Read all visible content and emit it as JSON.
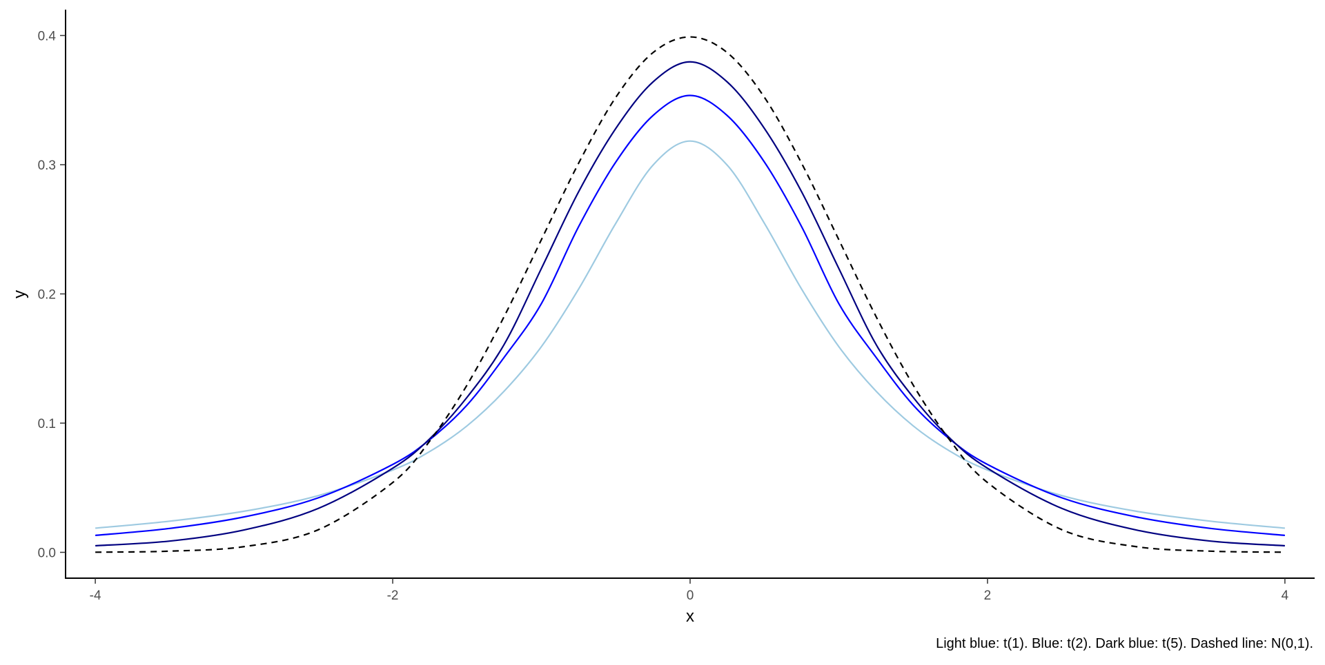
{
  "chart_data": {
    "type": "line",
    "title": "",
    "xlabel": "x",
    "ylabel": "y",
    "caption": "Light blue: t(1). Blue: t(2). Dark blue: t(5). Dashed line: N(0,1).",
    "xlim": [
      -4.2,
      4.2
    ],
    "ylim": [
      -0.02,
      0.42
    ],
    "x_ticks": [
      -4,
      -2,
      0,
      2,
      4
    ],
    "x_tick_labels": [
      "-4",
      "-2",
      "0",
      "2",
      "4"
    ],
    "y_ticks": [
      0.0,
      0.1,
      0.2,
      0.3,
      0.4
    ],
    "y_tick_labels": [
      "0.0",
      "0.1",
      "0.2",
      "0.3",
      "0.4"
    ],
    "grid": false,
    "legend": "none",
    "x": [
      -4,
      -3.5,
      -3,
      -2.5,
      -2,
      -1.75,
      -1.5,
      -1.25,
      -1,
      -0.75,
      -0.5,
      -0.25,
      0,
      0.25,
      0.5,
      0.75,
      1,
      1.25,
      1.5,
      1.75,
      2,
      2.5,
      3,
      3.5,
      4
    ],
    "series": [
      {
        "color": "#9ecae1",
        "style": "solid",
        "values": [
          0.0187,
          0.0241,
          0.0318,
          0.0439,
          0.0637,
          0.0781,
          0.0979,
          0.1248,
          0.1592,
          0.2037,
          0.2546,
          0.2996,
          0.3183,
          0.2996,
          0.2546,
          0.2037,
          0.1592,
          0.1248,
          0.0979,
          0.0781,
          0.0637,
          0.0439,
          0.0318,
          0.0241,
          0.0187
        ]
      },
      {
        "color": "#0000ff",
        "style": "solid",
        "values": [
          0.0131,
          0.0185,
          0.0274,
          0.0422,
          0.068,
          0.0873,
          0.114,
          0.151,
          0.1925,
          0.252,
          0.302,
          0.338,
          0.3536,
          0.338,
          0.302,
          0.252,
          0.1925,
          0.151,
          0.114,
          0.0873,
          0.068,
          0.0422,
          0.0274,
          0.0185,
          0.0131
        ]
      },
      {
        "color": "#000080",
        "style": "solid",
        "values": [
          0.0051,
          0.0087,
          0.0173,
          0.034,
          0.0651,
          0.088,
          0.12,
          0.161,
          0.2197,
          0.279,
          0.328,
          0.364,
          0.3796,
          0.364,
          0.328,
          0.279,
          0.2197,
          0.161,
          0.12,
          0.088,
          0.0651,
          0.034,
          0.0173,
          0.0087,
          0.0051
        ]
      },
      {
        "color": "#000000",
        "style": "dashed",
        "values": [
          0.0001,
          0.0009,
          0.0044,
          0.0175,
          0.054,
          0.0863,
          0.1295,
          0.1826,
          0.242,
          0.3011,
          0.3521,
          0.3867,
          0.3989,
          0.3867,
          0.3521,
          0.3011,
          0.242,
          0.1826,
          0.1295,
          0.0863,
          0.054,
          0.0175,
          0.0044,
          0.0009,
          0.0001
        ]
      }
    ]
  }
}
